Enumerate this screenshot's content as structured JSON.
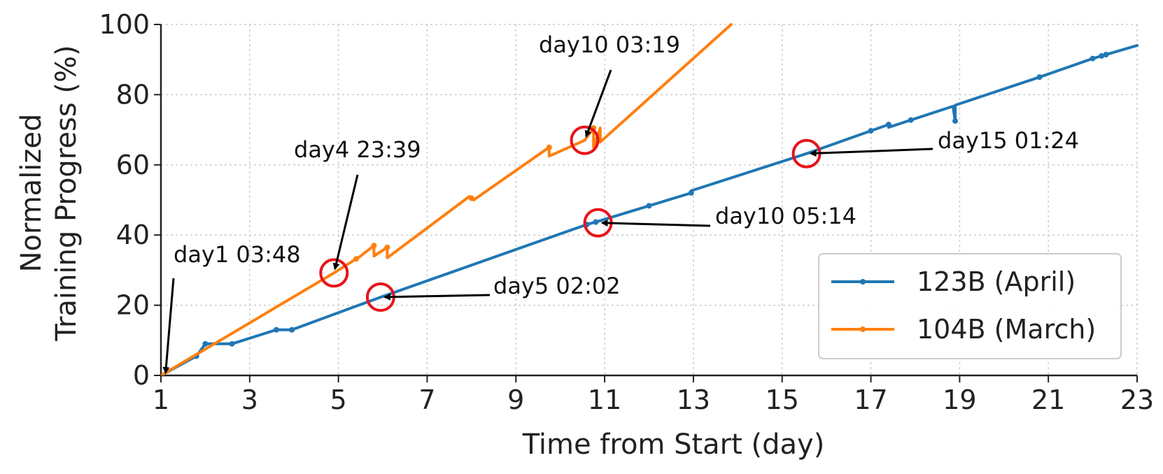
{
  "chart_data": {
    "type": "line",
    "xlabel": "Time from Start (day)",
    "ylabel_lines": [
      "Normalized",
      "Training Progress (%)"
    ],
    "xlim": [
      1,
      23
    ],
    "ylim": [
      0,
      100
    ],
    "xticks": [
      1,
      3,
      5,
      7,
      9,
      11,
      13,
      15,
      17,
      19,
      21,
      23
    ],
    "yticks": [
      0,
      20,
      40,
      60,
      80,
      100
    ],
    "grid": true,
    "legend_position": "bottom-right",
    "series": [
      {
        "name": "123B (April)",
        "color": "#1f77b4",
        "points": [
          [
            1.0,
            0
          ],
          [
            1.8,
            5.5
          ],
          [
            2.0,
            9
          ],
          [
            2.6,
            9
          ],
          [
            3.6,
            13
          ],
          [
            3.95,
            13
          ],
          [
            5.95,
            22.3
          ],
          [
            10.6,
            43
          ],
          [
            10.8,
            43.7
          ],
          [
            12.95,
            52
          ],
          [
            12.95,
            52.6
          ],
          [
            15.55,
            63.2
          ],
          [
            17.4,
            71.5
          ],
          [
            17.4,
            70.7
          ],
          [
            18.85,
            76.7
          ],
          [
            18.9,
            72.5
          ],
          [
            18.9,
            77
          ],
          [
            20.8,
            85
          ],
          [
            22.0,
            90.3
          ],
          [
            23.0,
            94
          ]
        ],
        "markers_x": [
          1.8,
          2.0,
          2.6,
          3.6,
          3.95,
          10.6,
          10.8,
          12.0,
          12.95,
          17.0,
          17.4,
          17.9,
          18.9,
          20.8,
          22.0,
          22.2,
          22.3
        ]
      },
      {
        "name": "104B (March)",
        "color": "#ff7f0e",
        "points": [
          [
            1.0,
            0
          ],
          [
            4.9,
            29.2
          ],
          [
            5.4,
            33.2
          ],
          [
            5.5,
            34
          ],
          [
            5.8,
            37
          ],
          [
            5.8,
            34
          ],
          [
            6.1,
            36.5
          ],
          [
            6.1,
            33.5
          ],
          [
            7.95,
            51
          ],
          [
            8.05,
            50
          ],
          [
            9.75,
            65
          ],
          [
            9.75,
            62.5
          ],
          [
            10.55,
            67
          ],
          [
            10.75,
            70.5
          ],
          [
            10.75,
            65
          ],
          [
            10.9,
            70.5
          ],
          [
            10.9,
            66.5
          ],
          [
            13.85,
            100
          ]
        ],
        "markers_x": [
          5.4,
          5.8,
          6.1,
          8.0,
          9.75,
          10.75
        ]
      }
    ],
    "annotations": [
      {
        "text": "day1 03:48",
        "target": [
          1.1,
          0
        ],
        "circle": false
      },
      {
        "text": "day4 23:39",
        "target": [
          4.9,
          29.2
        ],
        "circle": true
      },
      {
        "text": "day5 02:02",
        "target": [
          5.95,
          22.3
        ],
        "circle": true
      },
      {
        "text": "day10 03:19",
        "target": [
          10.55,
          67
        ],
        "circle": true
      },
      {
        "text": "day10 05:14",
        "target": [
          10.85,
          43.5
        ],
        "circle": true
      },
      {
        "text": "day15 01:24",
        "target": [
          15.55,
          63.2
        ],
        "circle": true
      }
    ]
  }
}
